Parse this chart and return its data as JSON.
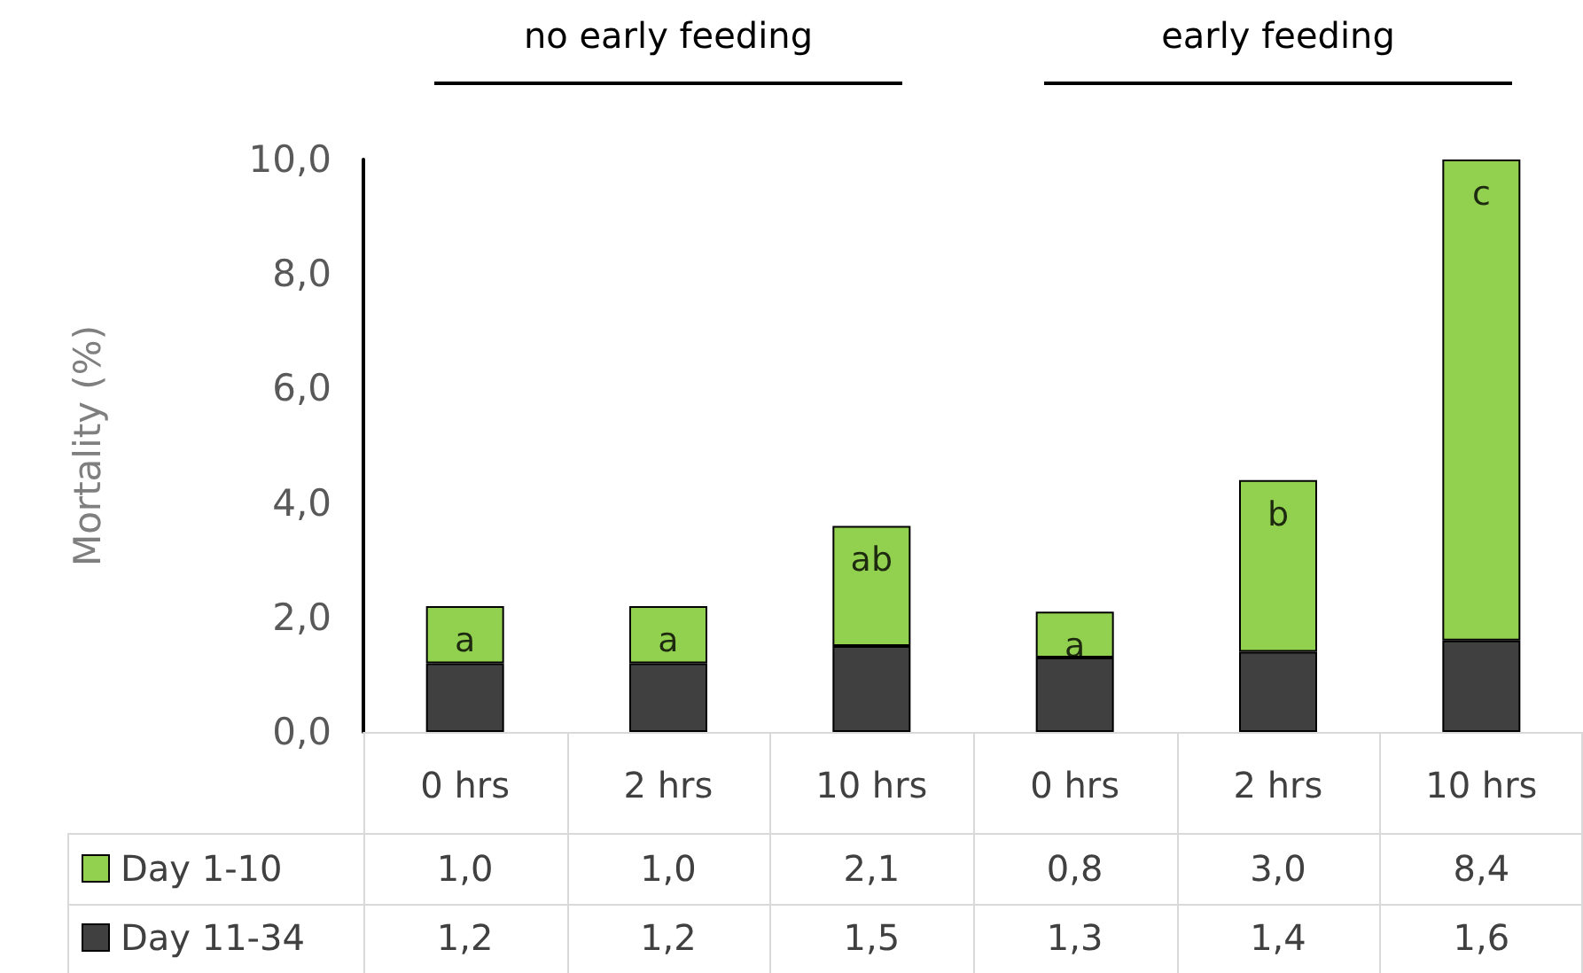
{
  "chart_data": {
    "type": "bar",
    "stacked": true,
    "ylabel": "Mortality (%)",
    "categories": [
      "0 hrs",
      "2 hrs",
      "10 hrs",
      "0 hrs",
      "2 hrs",
      "10 hrs"
    ],
    "series": [
      {
        "name": "Day 11-34",
        "color": "#404040",
        "values": [
          1.2,
          1.2,
          1.5,
          1.3,
          1.4,
          1.6
        ],
        "value_labels": [
          "1,2",
          "1,2",
          "1,5",
          "1,3",
          "1,4",
          "1,6"
        ]
      },
      {
        "name": "Day 1-10",
        "color": "#92d050",
        "values": [
          1.0,
          1.0,
          2.1,
          0.8,
          3.0,
          8.4
        ],
        "value_labels": [
          "1,0",
          "1,0",
          "2,1",
          "0,8",
          "3,0",
          "8,4"
        ]
      }
    ],
    "ylim": [
      0,
      10
    ],
    "yticks": [
      {
        "value": 0,
        "label": "0,0"
      },
      {
        "value": 2,
        "label": "2,0"
      },
      {
        "value": 4,
        "label": "4,0"
      },
      {
        "value": 6,
        "label": "6,0"
      },
      {
        "value": 8,
        "label": "8,0"
      },
      {
        "value": 10,
        "label": "10,0"
      }
    ],
    "grid": false,
    "legend": "bottom",
    "annotations": [
      "no early feeding",
      "early feeding",
      "a",
      "a",
      "ab",
      "a",
      "b",
      "c"
    ]
  }
}
